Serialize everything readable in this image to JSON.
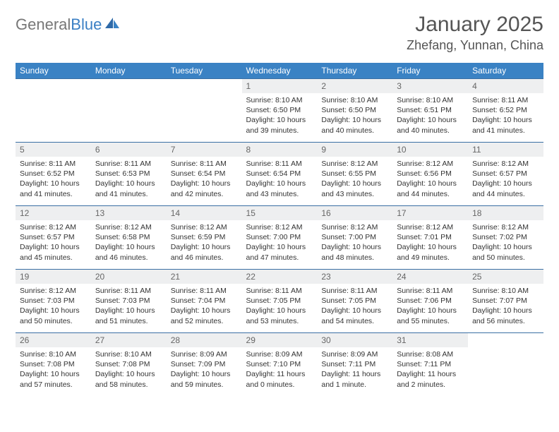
{
  "brand": {
    "part1": "General",
    "part2": "Blue"
  },
  "title": "January 2025",
  "location": "Zhefang, Yunnan, China",
  "colors": {
    "header_bg": "#3a82c4",
    "header_text": "#ffffff",
    "daynum_bg": "#eeeff0",
    "border": "#3a6fa4",
    "brand_gray": "#777777",
    "brand_blue": "#3a7fc4"
  },
  "weekdays": [
    "Sunday",
    "Monday",
    "Tuesday",
    "Wednesday",
    "Thursday",
    "Friday",
    "Saturday"
  ],
  "weeks": [
    [
      null,
      null,
      null,
      {
        "n": "1",
        "sr": "8:10 AM",
        "ss": "6:50 PM",
        "dl": "10 hours and 39 minutes."
      },
      {
        "n": "2",
        "sr": "8:10 AM",
        "ss": "6:50 PM",
        "dl": "10 hours and 40 minutes."
      },
      {
        "n": "3",
        "sr": "8:10 AM",
        "ss": "6:51 PM",
        "dl": "10 hours and 40 minutes."
      },
      {
        "n": "4",
        "sr": "8:11 AM",
        "ss": "6:52 PM",
        "dl": "10 hours and 41 minutes."
      }
    ],
    [
      {
        "n": "5",
        "sr": "8:11 AM",
        "ss": "6:52 PM",
        "dl": "10 hours and 41 minutes."
      },
      {
        "n": "6",
        "sr": "8:11 AM",
        "ss": "6:53 PM",
        "dl": "10 hours and 41 minutes."
      },
      {
        "n": "7",
        "sr": "8:11 AM",
        "ss": "6:54 PM",
        "dl": "10 hours and 42 minutes."
      },
      {
        "n": "8",
        "sr": "8:11 AM",
        "ss": "6:54 PM",
        "dl": "10 hours and 43 minutes."
      },
      {
        "n": "9",
        "sr": "8:12 AM",
        "ss": "6:55 PM",
        "dl": "10 hours and 43 minutes."
      },
      {
        "n": "10",
        "sr": "8:12 AM",
        "ss": "6:56 PM",
        "dl": "10 hours and 44 minutes."
      },
      {
        "n": "11",
        "sr": "8:12 AM",
        "ss": "6:57 PM",
        "dl": "10 hours and 44 minutes."
      }
    ],
    [
      {
        "n": "12",
        "sr": "8:12 AM",
        "ss": "6:57 PM",
        "dl": "10 hours and 45 minutes."
      },
      {
        "n": "13",
        "sr": "8:12 AM",
        "ss": "6:58 PM",
        "dl": "10 hours and 46 minutes."
      },
      {
        "n": "14",
        "sr": "8:12 AM",
        "ss": "6:59 PM",
        "dl": "10 hours and 46 minutes."
      },
      {
        "n": "15",
        "sr": "8:12 AM",
        "ss": "7:00 PM",
        "dl": "10 hours and 47 minutes."
      },
      {
        "n": "16",
        "sr": "8:12 AM",
        "ss": "7:00 PM",
        "dl": "10 hours and 48 minutes."
      },
      {
        "n": "17",
        "sr": "8:12 AM",
        "ss": "7:01 PM",
        "dl": "10 hours and 49 minutes."
      },
      {
        "n": "18",
        "sr": "8:12 AM",
        "ss": "7:02 PM",
        "dl": "10 hours and 50 minutes."
      }
    ],
    [
      {
        "n": "19",
        "sr": "8:12 AM",
        "ss": "7:03 PM",
        "dl": "10 hours and 50 minutes."
      },
      {
        "n": "20",
        "sr": "8:11 AM",
        "ss": "7:03 PM",
        "dl": "10 hours and 51 minutes."
      },
      {
        "n": "21",
        "sr": "8:11 AM",
        "ss": "7:04 PM",
        "dl": "10 hours and 52 minutes."
      },
      {
        "n": "22",
        "sr": "8:11 AM",
        "ss": "7:05 PM",
        "dl": "10 hours and 53 minutes."
      },
      {
        "n": "23",
        "sr": "8:11 AM",
        "ss": "7:05 PM",
        "dl": "10 hours and 54 minutes."
      },
      {
        "n": "24",
        "sr": "8:11 AM",
        "ss": "7:06 PM",
        "dl": "10 hours and 55 minutes."
      },
      {
        "n": "25",
        "sr": "8:10 AM",
        "ss": "7:07 PM",
        "dl": "10 hours and 56 minutes."
      }
    ],
    [
      {
        "n": "26",
        "sr": "8:10 AM",
        "ss": "7:08 PM",
        "dl": "10 hours and 57 minutes."
      },
      {
        "n": "27",
        "sr": "8:10 AM",
        "ss": "7:08 PM",
        "dl": "10 hours and 58 minutes."
      },
      {
        "n": "28",
        "sr": "8:09 AM",
        "ss": "7:09 PM",
        "dl": "10 hours and 59 minutes."
      },
      {
        "n": "29",
        "sr": "8:09 AM",
        "ss": "7:10 PM",
        "dl": "11 hours and 0 minutes."
      },
      {
        "n": "30",
        "sr": "8:09 AM",
        "ss": "7:11 PM",
        "dl": "11 hours and 1 minute."
      },
      {
        "n": "31",
        "sr": "8:08 AM",
        "ss": "7:11 PM",
        "dl": "11 hours and 2 minutes."
      },
      null
    ]
  ],
  "labels": {
    "sunrise": "Sunrise:",
    "sunset": "Sunset:",
    "daylight": "Daylight:"
  }
}
